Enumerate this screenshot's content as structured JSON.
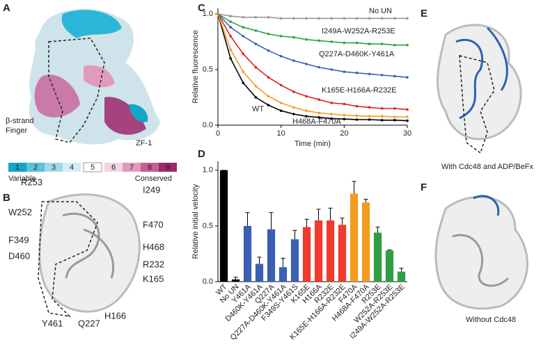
{
  "panels": {
    "A": {
      "letter": "A",
      "strand": "β-strand",
      "finger": "Finger",
      "zf": "ZF-1",
      "scale": [
        "1",
        "2",
        "3",
        "4",
        "5",
        "6",
        "7",
        "8",
        "9"
      ],
      "scale_colors": [
        "#12a6c8",
        "#5cc2d9",
        "#a0d9e7",
        "#d4edf4",
        "#ffffff",
        "#f2d4e2",
        "#e29abc",
        "#c85e98",
        "#9c276b"
      ],
      "variable": "Variable",
      "conserved": "Conserved"
    },
    "B": {
      "letter": "B",
      "labels": [
        {
          "text": "R253",
          "color": "#3a9a3a"
        },
        {
          "text": "I249",
          "color": "#3a9a3a"
        },
        {
          "text": "W252",
          "color": "#3a9a3a"
        },
        {
          "text": "F470",
          "color": "#f39c1f"
        },
        {
          "text": "H468",
          "color": "#f39c1f"
        },
        {
          "text": "F349",
          "color": "#2a72c0"
        },
        {
          "text": "D460",
          "color": "#2a72c0"
        },
        {
          "text": "R232",
          "color": "#e02020"
        },
        {
          "text": "K165",
          "color": "#e02020"
        },
        {
          "text": "H166",
          "color": "#e02020"
        },
        {
          "text": "Y461",
          "color": "#2a72c0"
        },
        {
          "text": "Q227",
          "color": "#2a72c0"
        }
      ]
    },
    "C": {
      "letter": "C"
    },
    "D": {
      "letter": "D"
    },
    "E": {
      "letter": "E",
      "caption": "With Cdc48 and ADP/BeFx"
    },
    "F": {
      "letter": "F",
      "caption": "Without Cdc48"
    }
  },
  "chart_data": [
    {
      "type": "line",
      "xlabel": "Time (min)",
      "ylabel": "Relative fluorescence",
      "x": [
        0,
        2,
        4,
        6,
        8,
        10,
        12,
        14,
        16,
        18,
        20,
        22,
        24,
        26,
        28,
        30
      ],
      "xlim": [
        0,
        30
      ],
      "xticks": [
        0,
        10,
        20,
        30
      ],
      "ylim": [
        0,
        1.05
      ],
      "yticks": [
        {
          "value": 0,
          "label": "0.0"
        },
        {
          "value": 0.5,
          "label": "0.5"
        },
        {
          "value": 1,
          "label": "1.0"
        }
      ],
      "series": [
        {
          "name": "No UN",
          "color": "#999999",
          "values": [
            1.0,
            0.98,
            0.97,
            0.97,
            0.97,
            0.96,
            0.96,
            0.96,
            0.96,
            0.96,
            0.96,
            0.96,
            0.96,
            0.96,
            0.96,
            0.96
          ]
        },
        {
          "name": "I249A-W252A-R253E",
          "color": "#2ea043",
          "values": [
            1.0,
            0.93,
            0.88,
            0.85,
            0.82,
            0.8,
            0.79,
            0.77,
            0.76,
            0.75,
            0.74,
            0.74,
            0.73,
            0.73,
            0.72,
            0.72
          ]
        },
        {
          "name": "Q227A-D460K-Y461A",
          "color": "#3a5fb5",
          "values": [
            1.0,
            0.88,
            0.8,
            0.73,
            0.67,
            0.62,
            0.58,
            0.55,
            0.52,
            0.5,
            0.48,
            0.47,
            0.46,
            0.45,
            0.44,
            0.43
          ]
        },
        {
          "name": "K165E-H166A-R232E",
          "color": "#e02020",
          "values": [
            1.0,
            0.8,
            0.64,
            0.52,
            0.43,
            0.36,
            0.3,
            0.26,
            0.23,
            0.2,
            0.19,
            0.17,
            0.16,
            0.15,
            0.15,
            0.14
          ]
        },
        {
          "name": "WT",
          "color": "#000000",
          "values": [
            1.0,
            0.6,
            0.38,
            0.25,
            0.18,
            0.13,
            0.1,
            0.08,
            0.07,
            0.06,
            0.055,
            0.05,
            0.05,
            0.045,
            0.045,
            0.04
          ]
        },
        {
          "name": "H468A-F470A",
          "color": "#f39c1f",
          "values": [
            1.0,
            0.68,
            0.48,
            0.35,
            0.26,
            0.2,
            0.16,
            0.13,
            0.11,
            0.1,
            0.09,
            0.085,
            0.08,
            0.08,
            0.075,
            0.075
          ]
        }
      ]
    },
    {
      "type": "bar",
      "ylabel": "Relative initial velocity",
      "categories": [
        "WT",
        "No UN",
        "Y461A",
        "D460K-Y461A",
        "Q227A",
        "Q227A-D460K-Y461A",
        "F349S-Y461S",
        "K165E",
        "H166A",
        "R232E",
        "K165E-H166A-R232E",
        "F470A",
        "H468A-F470A",
        "R253E",
        "W252A-R253E",
        "I249A-W252A-R253E"
      ],
      "values": [
        1.0,
        0.02,
        0.5,
        0.16,
        0.47,
        0.13,
        0.38,
        0.49,
        0.55,
        0.55,
        0.51,
        0.79,
        0.71,
        0.44,
        0.28,
        0.09
      ],
      "errors": [
        0,
        0.02,
        0.12,
        0.06,
        0.15,
        0.08,
        0.08,
        0.07,
        0.1,
        0.11,
        0.06,
        0.11,
        0.03,
        0.05,
        0.005,
        0.03
      ],
      "colors": [
        "#000000",
        "#000000",
        "#3a5fb5",
        "#3a5fb5",
        "#3a5fb5",
        "#3a5fb5",
        "#3a5fb5",
        "#ef3a2c",
        "#ef3a2c",
        "#ef3a2c",
        "#ef3a2c",
        "#f39c1f",
        "#f39c1f",
        "#2ea043",
        "#2ea043",
        "#2ea043"
      ],
      "ylim": [
        0,
        1.08
      ],
      "yticks": [
        {
          "value": 0,
          "label": "0.0"
        },
        {
          "value": 0.5,
          "label": "0.5"
        },
        {
          "value": 1,
          "label": "1.0"
        }
      ]
    }
  ]
}
